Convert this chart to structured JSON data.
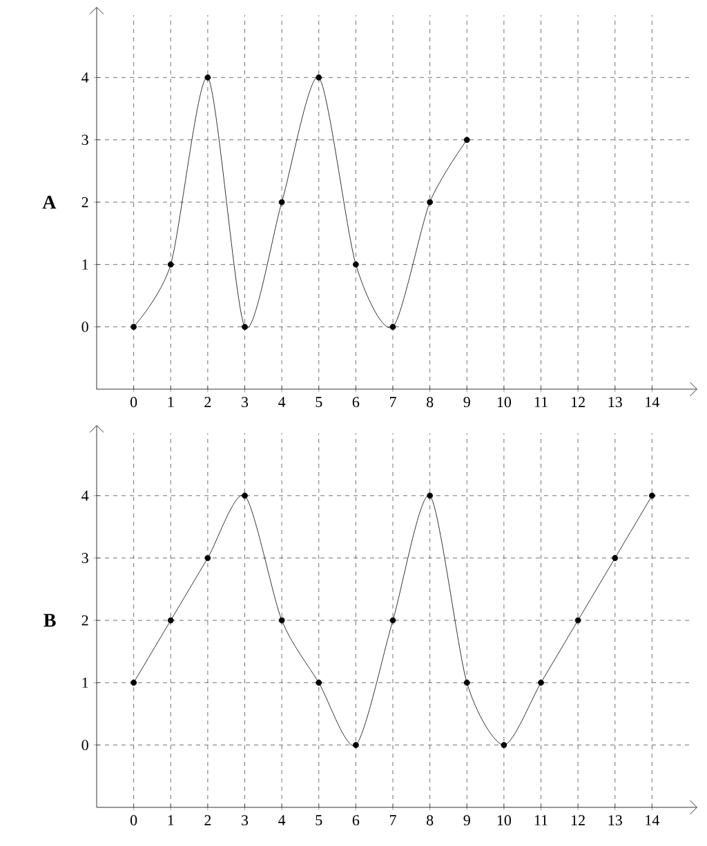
{
  "chart_data": [
    {
      "type": "line",
      "ylabel": "A",
      "x": [
        0,
        1,
        2,
        3,
        4,
        5,
        6,
        7,
        8,
        9
      ],
      "values": [
        0,
        1,
        4,
        0,
        2,
        4,
        1,
        0,
        2,
        3
      ],
      "color": "#000000",
      "xlim": [
        -1,
        15
      ],
      "ylim": [
        -1,
        5
      ],
      "xticks": [
        0,
        1,
        2,
        3,
        4,
        5,
        6,
        7,
        8,
        9,
        10,
        11,
        12,
        13,
        14
      ],
      "yticks": [
        0,
        1,
        2,
        3,
        4
      ],
      "grid": true,
      "marker": "circle",
      "line_style": "solid"
    },
    {
      "type": "line",
      "ylabel": "B",
      "x": [
        0,
        1,
        2,
        3,
        4,
        5,
        6,
        7,
        8,
        9,
        10,
        11,
        12,
        13,
        14
      ],
      "values": [
        1,
        2,
        3,
        4,
        2,
        1,
        0,
        2,
        4,
        1,
        0,
        1,
        2,
        3,
        4
      ],
      "color": "#000000",
      "xlim": [
        -1,
        15
      ],
      "ylim": [
        -1,
        5
      ],
      "xticks": [
        0,
        1,
        2,
        3,
        4,
        5,
        6,
        7,
        8,
        9,
        10,
        11,
        12,
        13,
        14
      ],
      "yticks": [
        0,
        1,
        2,
        3,
        4
      ],
      "grid": true,
      "marker": "circle",
      "line_style": "solid"
    }
  ]
}
